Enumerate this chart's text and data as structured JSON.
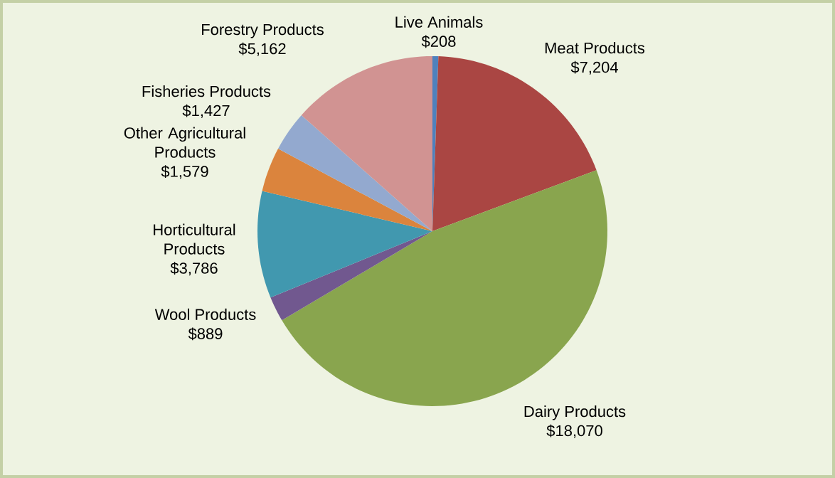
{
  "chart_data": {
    "type": "pie",
    "categories": [
      "Live Animals",
      "Meat Products",
      "Dairy Products",
      "Wool Products",
      "Horticultural Products",
      "Other Agricultural Products",
      "Fisheries Products",
      "Forestry Products"
    ],
    "values": [
      208,
      7204,
      18070,
      889,
      3786,
      1579,
      1427,
      5162
    ],
    "value_labels": [
      "$208",
      "$7,204",
      "$18,070",
      "$889",
      "$3,786",
      "$1,579",
      "$1,427",
      "$5,162"
    ],
    "colors": [
      "#4f81bd",
      "#aa4643",
      "#89a54e",
      "#71588f",
      "#4198af",
      "#db843d",
      "#93a9cf",
      "#d19392"
    ]
  }
}
